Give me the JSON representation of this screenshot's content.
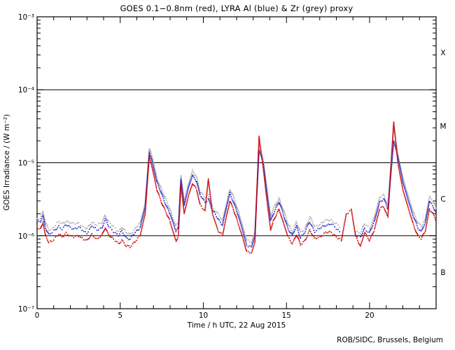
{
  "window": {
    "background": "#ffffff"
  },
  "chart_data": {
    "type": "scatter",
    "title": "GOES 0.1−0.8nm (red), LYRA Al (blue) & Zr (grey) proxy",
    "xlabel": "Time / h UTC, 22 Aug 2015",
    "ylabel": "GOES Irradiance / (W m⁻²)",
    "footer": "ROB/SIDC, Brussels, Belgium",
    "x_range_hours": [
      0,
      24
    ],
    "x_major_ticks": [
      0,
      5,
      10,
      15,
      20
    ],
    "x_tick_labels": [
      "0",
      "5",
      "10",
      "15",
      "20"
    ],
    "x_minor_tick_step_hours": 1,
    "y_scale": "log",
    "y_range_wm2": [
      1e-07,
      0.001
    ],
    "y_tick_labels": [
      "10⁻³",
      "10⁻⁴",
      "10⁻⁵",
      "10⁻⁶",
      "10⁻⁷"
    ],
    "y_tick_exponents": [
      -3,
      -4,
      -5,
      -6,
      -7
    ],
    "hlines_wm2": [
      0.0001,
      1e-05,
      1e-06
    ],
    "flare_class_labels": [
      "X",
      "M",
      "C",
      "B"
    ],
    "legend_position": "in-title",
    "grid": "off",
    "value_unit": "1e-6 W m^-2",
    "x_hours": [
      0.0,
      0.2,
      0.35,
      0.5,
      0.7,
      0.9,
      1.1,
      1.3,
      1.5,
      1.75,
      2.0,
      2.2,
      2.5,
      2.8,
      3.0,
      3.3,
      3.6,
      3.9,
      4.1,
      4.3,
      4.6,
      4.9,
      5.1,
      5.35,
      5.6,
      5.9,
      6.2,
      6.5,
      6.75,
      6.9,
      7.2,
      7.6,
      8.0,
      8.35,
      8.5,
      8.65,
      8.85,
      9.1,
      9.35,
      9.6,
      9.8,
      10.1,
      10.3,
      10.55,
      10.9,
      11.15,
      11.4,
      11.6,
      11.8,
      12.1,
      12.4,
      12.6,
      12.9,
      13.1,
      13.35,
      13.6,
      13.9,
      14.05,
      14.2,
      14.55,
      14.8,
      15.1,
      15.35,
      15.6,
      15.85,
      16.1,
      16.4,
      16.7,
      17.0,
      17.35,
      17.7,
      18.0,
      18.3,
      18.6,
      18.9,
      19.15,
      19.45,
      19.7,
      20.0,
      20.3,
      20.6,
      20.85,
      21.1,
      21.45,
      21.7,
      22.0,
      22.3,
      22.6,
      22.9,
      23.1,
      23.35,
      23.6,
      23.8,
      24.0
    ],
    "series": [
      {
        "name": "GOES 0.1-0.8nm",
        "color": "#cc0000",
        "values_1e6": [
          1.25,
          1.25,
          1.55,
          1.0,
          0.8,
          0.85,
          0.95,
          1.05,
          0.95,
          1.1,
          1.0,
          0.95,
          1.0,
          0.9,
          0.85,
          1.05,
          0.9,
          1.0,
          1.3,
          1.05,
          0.88,
          0.78,
          0.88,
          0.72,
          0.7,
          0.85,
          1.0,
          2.0,
          12.5,
          9.0,
          4.3,
          2.5,
          1.55,
          0.85,
          1.0,
          5.0,
          2.0,
          3.5,
          5.2,
          4.2,
          2.7,
          2.2,
          6.0,
          2.0,
          1.15,
          1.0,
          1.9,
          3.0,
          2.3,
          1.45,
          0.9,
          0.6,
          0.58,
          0.82,
          23.0,
          8.5,
          2.2,
          1.2,
          1.55,
          2.3,
          1.55,
          0.95,
          0.78,
          1.05,
          0.74,
          0.85,
          1.2,
          0.9,
          0.97,
          1.1,
          1.12,
          0.97,
          0.85,
          2.0,
          2.3,
          1.0,
          0.72,
          1.1,
          0.85,
          1.25,
          2.3,
          2.5,
          1.8,
          36.0,
          10.0,
          4.3,
          2.5,
          1.5,
          1.0,
          0.9,
          1.15,
          2.35,
          2.0,
          1.6
        ]
      },
      {
        "name": "LYRA Al proxy",
        "color": "#2626cc",
        "values_1e6": [
          1.5,
          1.55,
          1.9,
          1.3,
          1.05,
          1.1,
          1.2,
          1.35,
          1.25,
          1.4,
          1.3,
          1.25,
          1.3,
          1.15,
          1.1,
          1.35,
          1.2,
          1.3,
          1.65,
          1.35,
          1.15,
          1.0,
          1.15,
          0.95,
          0.9,
          1.1,
          1.3,
          2.5,
          14.0,
          11.0,
          5.5,
          3.2,
          2.0,
          1.15,
          1.3,
          6.0,
          2.6,
          4.5,
          6.8,
          5.5,
          3.6,
          2.9,
          3.2,
          2.2,
          1.7,
          1.4,
          2.5,
          3.8,
          3.0,
          1.9,
          1.1,
          0.75,
          0.7,
          1.0,
          15.0,
          10.0,
          2.8,
          1.6,
          2.0,
          2.9,
          2.0,
          1.25,
          1.0,
          1.35,
          0.95,
          1.1,
          1.55,
          1.15,
          1.25,
          1.4,
          1.45,
          1.25,
          1.1,
          null,
          null,
          1.0,
          0.95,
          1.25,
          1.1,
          1.6,
          2.9,
          3.2,
          2.3,
          20.0,
          12.0,
          5.5,
          3.2,
          1.9,
          1.3,
          1.15,
          1.5,
          3.0,
          2.6,
          2.1
        ]
      },
      {
        "name": "LYRA Zr proxy",
        "color": "#a8a8a8",
        "values_1e6": [
          1.7,
          1.75,
          2.15,
          1.5,
          1.2,
          1.25,
          1.4,
          1.55,
          1.45,
          1.6,
          1.5,
          1.45,
          1.5,
          1.3,
          1.25,
          1.55,
          1.4,
          1.5,
          1.95,
          1.55,
          1.32,
          1.15,
          1.32,
          1.1,
          1.05,
          1.25,
          1.5,
          2.8,
          15.5,
          12.5,
          6.3,
          3.7,
          2.3,
          1.35,
          1.5,
          6.6,
          3.0,
          5.1,
          7.8,
          6.3,
          4.1,
          3.3,
          3.6,
          2.5,
          1.95,
          1.6,
          2.85,
          4.3,
          3.45,
          2.2,
          1.25,
          0.88,
          0.8,
          1.15,
          18.0,
          11.0,
          3.2,
          1.85,
          2.3,
          3.3,
          2.3,
          1.45,
          1.15,
          1.55,
          1.1,
          1.25,
          1.8,
          1.32,
          1.45,
          1.6,
          1.65,
          1.45,
          1.25,
          null,
          null,
          1.15,
          1.1,
          1.45,
          1.25,
          1.85,
          3.3,
          3.65,
          2.65,
          32.0,
          13.0,
          6.2,
          3.65,
          2.2,
          1.5,
          1.32,
          1.7,
          3.4,
          3.0,
          2.4
        ]
      }
    ],
    "colors": {
      "axis": "#000000",
      "text": "#000000",
      "background": "#ffffff"
    }
  }
}
